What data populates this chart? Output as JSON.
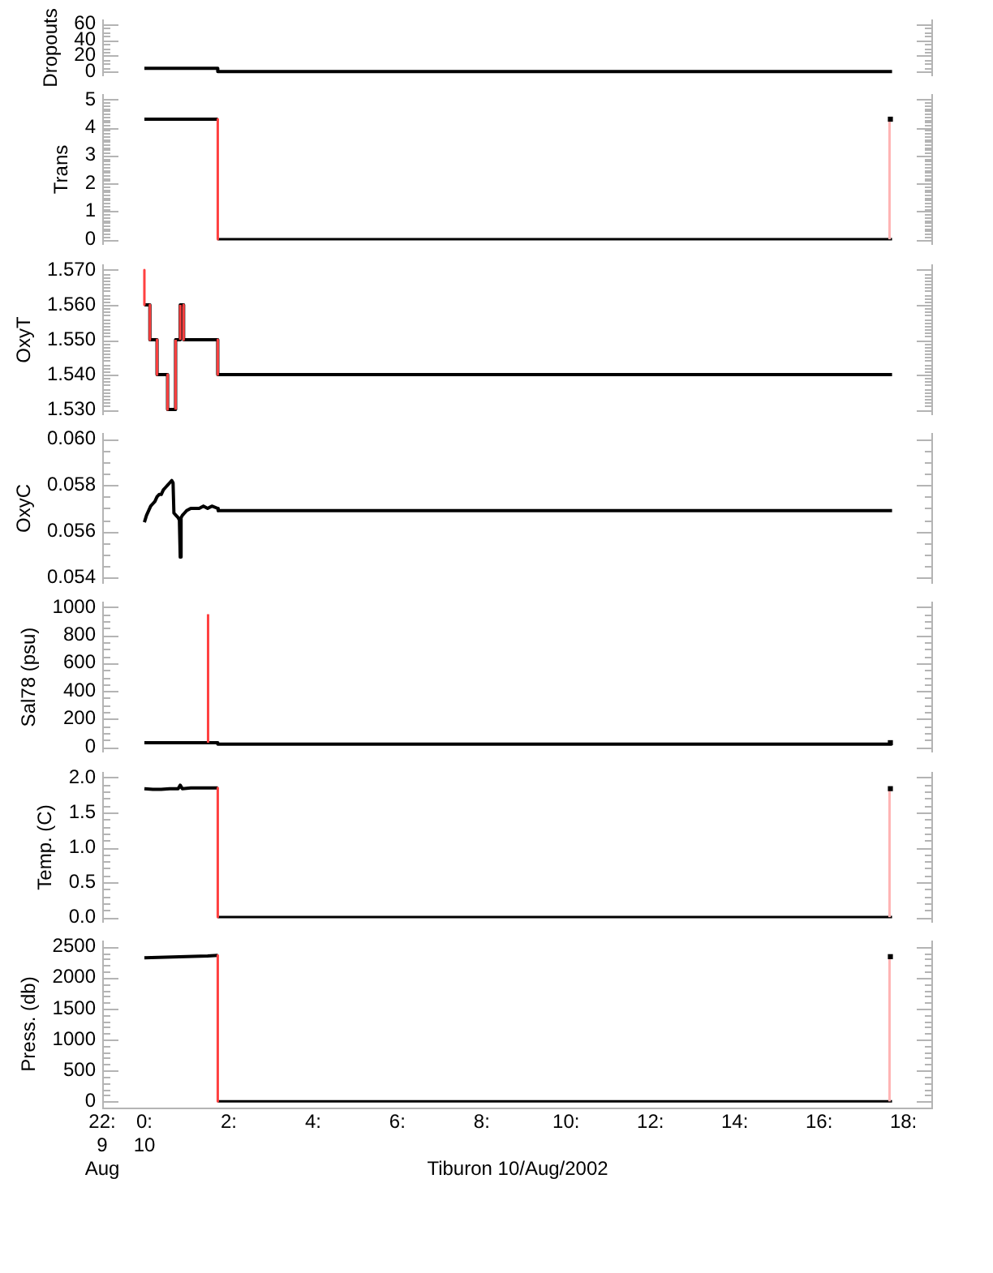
{
  "chart_data": [
    {
      "type": "line",
      "ylabel": "Dropouts",
      "xlim": [
        -1,
        18.7
      ],
      "ylim": [
        -6,
        66
      ],
      "tick_labels": "y",
      "yticks": [
        0,
        {
          "value": 5,
          "label": null
        },
        {
          "value": 10,
          "label": null
        },
        {
          "value": 15,
          "label": null
        },
        20,
        {
          "value": 25,
          "label": null
        },
        {
          "value": 30,
          "label": null
        },
        {
          "value": 35,
          "label": null
        },
        40,
        {
          "value": 45,
          "label": null
        },
        {
          "value": 50,
          "label": null
        },
        {
          "value": 55,
          "label": null
        },
        60
      ],
      "series": [
        {
          "color": "#000000",
          "x": [
            0,
            1.74,
            1.74,
            17.73
          ],
          "values": [
            4,
            4,
            0,
            0
          ]
        }
      ]
    },
    {
      "type": "line",
      "ylabel": "Trans",
      "xlim": [
        -1,
        18.7
      ],
      "ylim": [
        -0.2,
        5.2
      ],
      "tick_labels": "y",
      "yticks": [
        0,
        {
          "value": 0.1,
          "label": null
        },
        {
          "value": 0.2,
          "label": null
        },
        {
          "value": 0.3,
          "label": null
        },
        {
          "value": 0.4,
          "label": null
        },
        {
          "value": 0.5,
          "label": null
        },
        {
          "value": 0.6,
          "label": null
        },
        {
          "value": 0.7,
          "label": null
        },
        {
          "value": 0.8,
          "label": null
        },
        {
          "value": 0.9,
          "label": null
        },
        1,
        {
          "value": 1.1,
          "label": null
        },
        {
          "value": 1.2,
          "label": null
        },
        {
          "value": 1.3,
          "label": null
        },
        {
          "value": 1.4,
          "label": null
        },
        {
          "value": 1.5,
          "label": null
        },
        {
          "value": 1.6,
          "label": null
        },
        {
          "value": 1.7,
          "label": null
        },
        {
          "value": 1.8,
          "label": null
        },
        {
          "value": 1.9,
          "label": null
        },
        2,
        {
          "value": 2.1,
          "label": null
        },
        {
          "value": 2.2,
          "label": null
        },
        {
          "value": 2.3,
          "label": null
        },
        {
          "value": 2.4,
          "label": null
        },
        {
          "value": 2.5,
          "label": null
        },
        {
          "value": 2.6,
          "label": null
        },
        {
          "value": 2.7,
          "label": null
        },
        {
          "value": 2.8,
          "label": null
        },
        {
          "value": 2.9,
          "label": null
        },
        3,
        {
          "value": 3.1,
          "label": null
        },
        {
          "value": 3.2,
          "label": null
        },
        {
          "value": 3.3,
          "label": null
        },
        {
          "value": 3.4,
          "label": null
        },
        {
          "value": 3.5,
          "label": null
        },
        {
          "value": 3.6,
          "label": null
        },
        {
          "value": 3.7,
          "label": null
        },
        {
          "value": 3.8,
          "label": null
        },
        {
          "value": 3.9,
          "label": null
        },
        4,
        {
          "value": 4.1,
          "label": null
        },
        {
          "value": 4.2,
          "label": null
        },
        {
          "value": 4.3,
          "label": null
        },
        {
          "value": 4.4,
          "label": null
        },
        {
          "value": 4.5,
          "label": null
        },
        {
          "value": 4.6,
          "label": null
        },
        {
          "value": 4.7,
          "label": null
        },
        {
          "value": 4.8,
          "label": null
        },
        {
          "value": 4.9,
          "label": null
        },
        5
      ],
      "series": [
        {
          "color": "#000000",
          "x": [
            0,
            1.74
          ],
          "values": [
            4.3,
            4.3
          ]
        },
        {
          "color": "#000000",
          "x": [
            1.74,
            17.73
          ],
          "values": [
            0,
            0
          ]
        },
        {
          "color": "#ff4040",
          "x": [
            1.74,
            1.74
          ],
          "values": [
            4.3,
            0
          ]
        },
        {
          "color": "#ffb4b4",
          "x": [
            17.67,
            17.67
          ],
          "values": [
            0,
            4.3
          ]
        },
        {
          "type": "scatter",
          "marker": "square",
          "color": "#000000",
          "x": [
            17.69
          ],
          "values": [
            4.3
          ]
        }
      ]
    },
    {
      "type": "line",
      "ylabel": "OxyT",
      "xlim": [
        -1,
        18.7
      ],
      "ylim": [
        1.5284,
        1.5716
      ],
      "tick_labels": "y",
      "yticks": [
        {
          "value": 1.53,
          "label": "1.530"
        },
        {
          "value": 1.531,
          "label": null
        },
        {
          "value": 1.532,
          "label": null
        },
        {
          "value": 1.533,
          "label": null
        },
        {
          "value": 1.534,
          "label": null
        },
        {
          "value": 1.535,
          "label": null
        },
        {
          "value": 1.536,
          "label": null
        },
        {
          "value": 1.537,
          "label": null
        },
        {
          "value": 1.538,
          "label": null
        },
        {
          "value": 1.539,
          "label": null
        },
        {
          "value": 1.54,
          "label": "1.540"
        },
        {
          "value": 1.541,
          "label": null
        },
        {
          "value": 1.542,
          "label": null
        },
        {
          "value": 1.543,
          "label": null
        },
        {
          "value": 1.544,
          "label": null
        },
        {
          "value": 1.545,
          "label": null
        },
        {
          "value": 1.546,
          "label": null
        },
        {
          "value": 1.547,
          "label": null
        },
        {
          "value": 1.548,
          "label": null
        },
        {
          "value": 1.549,
          "label": null
        },
        {
          "value": 1.55,
          "label": "1.550"
        },
        {
          "value": 1.551,
          "label": null
        },
        {
          "value": 1.552,
          "label": null
        },
        {
          "value": 1.553,
          "label": null
        },
        {
          "value": 1.554,
          "label": null
        },
        {
          "value": 1.555,
          "label": null
        },
        {
          "value": 1.556,
          "label": null
        },
        {
          "value": 1.557,
          "label": null
        },
        {
          "value": 1.558,
          "label": null
        },
        {
          "value": 1.559,
          "label": null
        },
        {
          "value": 1.56,
          "label": "1.560"
        },
        {
          "value": 1.561,
          "label": null
        },
        {
          "value": 1.562,
          "label": null
        },
        {
          "value": 1.563,
          "label": null
        },
        {
          "value": 1.564,
          "label": null
        },
        {
          "value": 1.565,
          "label": null
        },
        {
          "value": 1.566,
          "label": null
        },
        {
          "value": 1.567,
          "label": null
        },
        {
          "value": 1.568,
          "label": null
        },
        {
          "value": 1.569,
          "label": null
        },
        {
          "value": 1.57,
          "label": "1.570"
        }
      ],
      "series": [
        {
          "color": "#000000",
          "x": [
            0,
            0.13,
            0.13,
            0.3,
            0.3,
            0.55,
            0.55,
            0.74,
            0.74,
            0.85,
            0.85,
            0.93,
            0.93,
            1.74,
            1.74,
            17.73
          ],
          "values": [
            1.56,
            1.56,
            1.55,
            1.55,
            1.54,
            1.54,
            1.53,
            1.53,
            1.55,
            1.55,
            1.56,
            1.56,
            1.55,
            1.55,
            1.54,
            1.54
          ]
        },
        {
          "color": "#ff4040",
          "x": [
            0,
            0
          ],
          "values": [
            1.57,
            1.56
          ]
        },
        {
          "color": "#ff4040",
          "x": [
            0.13,
            0.13
          ],
          "values": [
            1.56,
            1.55
          ]
        },
        {
          "color": "#ff4040",
          "x": [
            0.3,
            0.3
          ],
          "values": [
            1.55,
            1.54
          ]
        },
        {
          "color": "#ff4040",
          "x": [
            0.55,
            0.55
          ],
          "values": [
            1.54,
            1.53
          ]
        },
        {
          "color": "#ff4040",
          "x": [
            0.74,
            0.74
          ],
          "values": [
            1.53,
            1.55
          ]
        },
        {
          "color": "#ff4040",
          "x": [
            0.85,
            0.85
          ],
          "values": [
            1.55,
            1.56
          ]
        },
        {
          "color": "#ff4040",
          "x": [
            0.93,
            0.93
          ],
          "values": [
            1.56,
            1.55
          ]
        },
        {
          "color": "#ff4040",
          "x": [
            1.74,
            1.74
          ],
          "values": [
            1.55,
            1.54
          ]
        }
      ]
    },
    {
      "type": "line",
      "ylabel": "OxyC",
      "xlim": [
        -1,
        18.7
      ],
      "ylim": [
        0.05375,
        0.06025
      ],
      "tick_labels": "y",
      "yticks": [
        0.054,
        {
          "value": 0.0545,
          "label": null
        },
        {
          "value": 0.055,
          "label": null
        },
        {
          "value": 0.0555,
          "label": null
        },
        0.056,
        {
          "value": 0.0565,
          "label": null
        },
        {
          "value": 0.057,
          "label": null
        },
        {
          "value": 0.0575,
          "label": null
        },
        0.058,
        {
          "value": 0.0585,
          "label": null
        },
        {
          "value": 0.059,
          "label": null
        },
        {
          "value": 0.0595,
          "label": null
        },
        {
          "value": 0.06,
          "label": "0.060"
        }
      ],
      "series": [
        {
          "color": "#000000",
          "x": [
            0,
            0.05,
            0.1,
            0.15,
            0.2,
            0.25,
            0.3,
            0.35,
            0.4,
            0.45,
            0.5,
            0.55,
            0.6,
            0.65,
            0.68,
            0.7,
            0.75,
            0.8,
            0.83,
            0.85,
            0.87,
            0.9,
            0.95,
            1,
            1.1,
            1.2,
            1.3,
            1.4,
            1.5,
            1.6,
            1.74,
            1.75,
            17.73
          ],
          "values": [
            0.0564,
            0.0567,
            0.0569,
            0.0571,
            0.0572,
            0.0573,
            0.0575,
            0.0576,
            0.0576,
            0.0578,
            0.0579,
            0.058,
            0.0581,
            0.0582,
            0.0581,
            0.0568,
            0.0567,
            0.0566,
            0.0565,
            0.0549,
            0.0566,
            0.0567,
            0.0568,
            0.0569,
            0.057,
            0.057,
            0.057,
            0.0571,
            0.057,
            0.0571,
            0.057,
            0.0569,
            0.0569
          ]
        }
      ]
    },
    {
      "type": "line",
      "ylabel": "Sal78 (psu)",
      "xlim": [
        -1,
        18.7
      ],
      "ylim": [
        -40,
        1040
      ],
      "tick_labels": "y",
      "yticks": [
        0,
        {
          "value": 50,
          "label": null
        },
        {
          "value": 100,
          "label": null
        },
        {
          "value": 150,
          "label": null
        },
        200,
        {
          "value": 250,
          "label": null
        },
        {
          "value": 300,
          "label": null
        },
        {
          "value": 350,
          "label": null
        },
        400,
        {
          "value": 450,
          "label": null
        },
        {
          "value": 500,
          "label": null
        },
        {
          "value": 550,
          "label": null
        },
        600,
        {
          "value": 650,
          "label": null
        },
        {
          "value": 700,
          "label": null
        },
        {
          "value": 750,
          "label": null
        },
        800,
        {
          "value": 850,
          "label": null
        },
        {
          "value": 900,
          "label": null
        },
        {
          "value": 950,
          "label": null
        },
        1000
      ],
      "series": [
        {
          "color": "#000000",
          "x": [
            0,
            1.74,
            1.74,
            17.73
          ],
          "values": [
            30,
            30,
            20,
            20
          ]
        },
        {
          "color": "#ff4040",
          "x": [
            1.51,
            1.51
          ],
          "values": [
            30,
            950
          ]
        },
        {
          "type": "scatter",
          "marker": "square",
          "color": "#000000",
          "x": [
            17.69
          ],
          "values": [
            30
          ]
        }
      ]
    },
    {
      "type": "line",
      "ylabel": "Temp. (C)",
      "xlim": [
        -1,
        18.7
      ],
      "ylim": [
        -0.08,
        2.08
      ],
      "tick_labels": "y",
      "yticks": [
        {
          "value": 0,
          "label": "0.0"
        },
        {
          "value": 0.1,
          "label": null
        },
        {
          "value": 0.2,
          "label": null
        },
        {
          "value": 0.3,
          "label": null
        },
        {
          "value": 0.4,
          "label": null
        },
        0.5,
        {
          "value": 0.6,
          "label": null
        },
        {
          "value": 0.7,
          "label": null
        },
        {
          "value": 0.8,
          "label": null
        },
        {
          "value": 0.9,
          "label": null
        },
        {
          "value": 1,
          "label": "1.0"
        },
        {
          "value": 1.1,
          "label": null
        },
        {
          "value": 1.2,
          "label": null
        },
        {
          "value": 1.3,
          "label": null
        },
        {
          "value": 1.4,
          "label": null
        },
        1.5,
        {
          "value": 1.6,
          "label": null
        },
        {
          "value": 1.7,
          "label": null
        },
        {
          "value": 1.8,
          "label": null
        },
        {
          "value": 1.9,
          "label": null
        },
        {
          "value": 2,
          "label": "2.0"
        }
      ],
      "series": [
        {
          "color": "#000000",
          "x": [
            0,
            0.2,
            0.4,
            0.6,
            0.8,
            0.85,
            0.9,
            1.1,
            1.4,
            1.74
          ],
          "values": [
            1.84,
            1.83,
            1.83,
            1.84,
            1.84,
            1.89,
            1.84,
            1.85,
            1.85,
            1.85
          ]
        },
        {
          "color": "#000000",
          "x": [
            1.74,
            17.73
          ],
          "values": [
            0,
            0
          ]
        },
        {
          "color": "#ff4040",
          "x": [
            1.74,
            1.74
          ],
          "values": [
            1.85,
            0
          ]
        },
        {
          "color": "#ffb4b4",
          "x": [
            17.67,
            17.67
          ],
          "values": [
            0,
            1.84
          ]
        },
        {
          "type": "scatter",
          "marker": "square",
          "color": "#000000",
          "x": [
            17.69
          ],
          "values": [
            1.84
          ]
        }
      ]
    },
    {
      "type": "line",
      "ylabel": "Press. (db)",
      "xlabel": "Tiburon 10/Aug/2002",
      "xlim": [
        -1,
        18.7
      ],
      "ylim": [
        -100,
        2600
      ],
      "xticks": [
        {
          "value": -1,
          "label": "22:\n9\nAug"
        },
        {
          "value": 0,
          "label": "0:\n10"
        },
        {
          "value": 2,
          "label": "2:"
        },
        {
          "value": 4,
          "label": "4:"
        },
        {
          "value": 6,
          "label": "6:"
        },
        {
          "value": 8,
          "label": "8:"
        },
        {
          "value": 10,
          "label": "10:"
        },
        {
          "value": 12,
          "label": "12:"
        },
        {
          "value": 14,
          "label": "14:"
        },
        {
          "value": 16,
          "label": "16:"
        },
        {
          "value": 18,
          "label": "18:"
        }
      ],
      "yticks": [
        0,
        {
          "value": 100,
          "label": null
        },
        {
          "value": 200,
          "label": null
        },
        {
          "value": 300,
          "label": null
        },
        {
          "value": 400,
          "label": null
        },
        500,
        {
          "value": 600,
          "label": null
        },
        {
          "value": 700,
          "label": null
        },
        {
          "value": 800,
          "label": null
        },
        {
          "value": 900,
          "label": null
        },
        1000,
        {
          "value": 1100,
          "label": null
        },
        {
          "value": 1200,
          "label": null
        },
        {
          "value": 1300,
          "label": null
        },
        {
          "value": 1400,
          "label": null
        },
        1500,
        {
          "value": 1600,
          "label": null
        },
        {
          "value": 1700,
          "label": null
        },
        {
          "value": 1800,
          "label": null
        },
        {
          "value": 1900,
          "label": null
        },
        2000,
        {
          "value": 2100,
          "label": null
        },
        {
          "value": 2200,
          "label": null
        },
        {
          "value": 2300,
          "label": null
        },
        {
          "value": 2400,
          "label": null
        },
        2500
      ],
      "series": [
        {
          "color": "#000000",
          "x": [
            0,
            0.5,
            1,
            1.5,
            1.74
          ],
          "values": [
            2320,
            2330,
            2340,
            2350,
            2360
          ]
        },
        {
          "color": "#000000",
          "x": [
            1.74,
            17.73
          ],
          "values": [
            0,
            0
          ]
        },
        {
          "color": "#ff4040",
          "x": [
            1.74,
            1.74
          ],
          "values": [
            2360,
            0
          ]
        },
        {
          "color": "#ffb4b4",
          "x": [
            17.67,
            17.67
          ],
          "values": [
            0,
            2340
          ]
        },
        {
          "type": "scatter",
          "marker": "square",
          "color": "#000000",
          "x": [
            17.69
          ],
          "values": [
            2340
          ]
        }
      ]
    }
  ]
}
